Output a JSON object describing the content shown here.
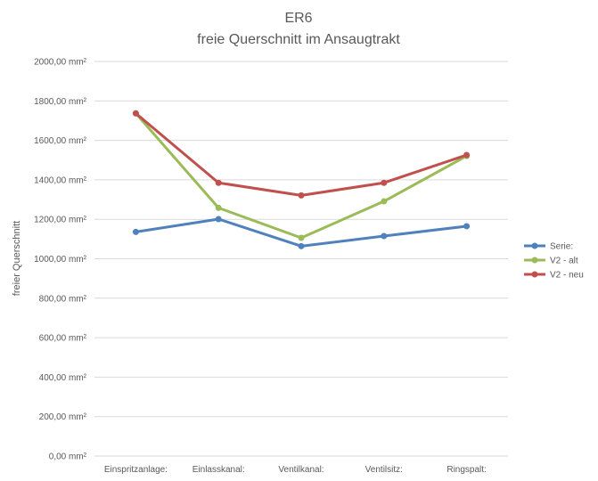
{
  "chart_data": {
    "type": "line",
    "title": "ER6",
    "subtitle": "freie Querschnitt im Ansaugtrakt",
    "xlabel": "",
    "ylabel": "freier Querschnitt",
    "ylim": [
      0,
      2000
    ],
    "ytick_step": 200,
    "ytick_labels": [
      "0,00 mm²",
      "200,00 mm²",
      "400,00 mm²",
      "600,00 mm²",
      "800,00 mm²",
      "1000,00 mm²",
      "1200,00 mm²",
      "1400,00 mm²",
      "1600,00 mm²",
      "1800,00 mm²",
      "2000,00 mm²"
    ],
    "grid": true,
    "legend_position": "right",
    "categories": [
      "Einspritzanlage:",
      "Einlasskanal:",
      "Ventilkanal:",
      "Ventilsitz:",
      "Ringspalt:"
    ],
    "series": [
      {
        "name": "Serie:",
        "color": "#4f81bd",
        "values": [
          1136,
          1201,
          1064,
          1115,
          1165
        ]
      },
      {
        "name": "V2 - alt",
        "color": "#9bbb59",
        "values": [
          1737,
          1258,
          1106,
          1291,
          1521
        ]
      },
      {
        "name": "V2 - neu",
        "color": "#c0504d",
        "values": [
          1737,
          1385,
          1321,
          1385,
          1526
        ]
      }
    ]
  }
}
